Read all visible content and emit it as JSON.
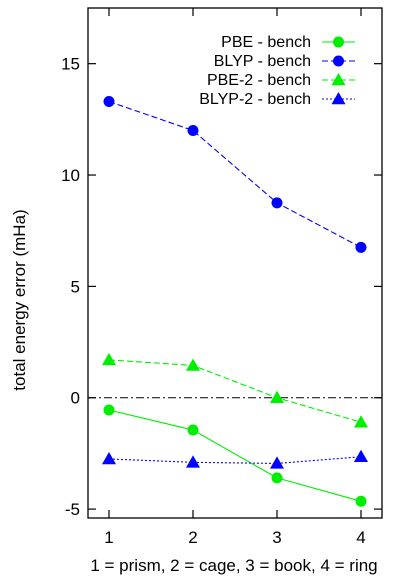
{
  "chart_data": {
    "type": "line",
    "xlabel": "1 = prism, 2 = cage, 3 = book, 4 = ring",
    "ylabel": "total energy error (mHa)",
    "x": [
      1,
      2,
      3,
      4
    ],
    "xlim": [
      0.75,
      4.25
    ],
    "ylim": [
      -5.4,
      17.5
    ],
    "xticks": [
      1,
      2,
      3,
      4
    ],
    "yticks": [
      -5,
      0,
      5,
      10,
      15
    ],
    "grid": false,
    "legend_position": "top-right",
    "zero_line": true,
    "series": [
      {
        "name": "PBE - bench",
        "values": [
          -0.55,
          -1.45,
          -3.6,
          -4.65
        ],
        "color": "#00ee00",
        "marker": "circle",
        "line": "solid"
      },
      {
        "name": "BLYP - bench",
        "values": [
          13.3,
          12.0,
          8.75,
          6.75
        ],
        "color": "#0000ff",
        "marker": "circle",
        "line": "dashed"
      },
      {
        "name": "PBE-2 - bench",
        "values": [
          1.7,
          1.45,
          0.0,
          -1.1
        ],
        "color": "#00ee00",
        "marker": "triangle",
        "line": "dashed"
      },
      {
        "name": "BLYP-2 - bench",
        "values": [
          -2.75,
          -2.9,
          -2.95,
          -2.65
        ],
        "color": "#0000ff",
        "marker": "triangle",
        "line": "dotted"
      }
    ]
  }
}
